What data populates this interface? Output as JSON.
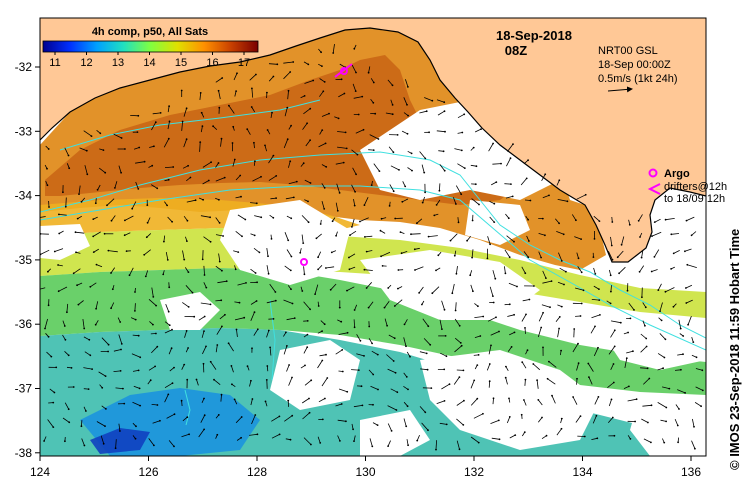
{
  "map": {
    "product": "4h comp, p50, All Sats",
    "date": "18-Sep-2018",
    "time": "08Z",
    "colorbar": {
      "ticks": [
        "11",
        "12",
        "13",
        "14",
        "15",
        "16",
        "17"
      ],
      "stops": [
        "#00008f",
        "#0030ff",
        "#00a0ff",
        "#20e0c0",
        "#80ff40",
        "#e0e000",
        "#ff9000",
        "#c84000",
        "#7a0000"
      ]
    },
    "current_info": {
      "line1": "NRT00 GSL",
      "line2": "18-Sep 00:00Z",
      "scale": "0.5m/s (1kt 24h)"
    },
    "legend": {
      "argo_label": "Argo",
      "drifters_line1": "drifters@12h",
      "drifters_line2": "to 18/09 12h"
    },
    "x_axis": {
      "ticks": [
        "124",
        "126",
        "128",
        "130",
        "132",
        "134",
        "136"
      ]
    },
    "y_axis": {
      "ticks": [
        "-32",
        "-33",
        "-34",
        "-35",
        "-36",
        "-37",
        "-38"
      ]
    },
    "credit": "© IMOS 23-Sep-2018 11:59 Hobart Time",
    "colors": {
      "land": "#ffc896",
      "coast": "#000000",
      "argo": "#ff00ff",
      "bathy": "#40e0e0",
      "cloud": "#ffffff"
    }
  }
}
